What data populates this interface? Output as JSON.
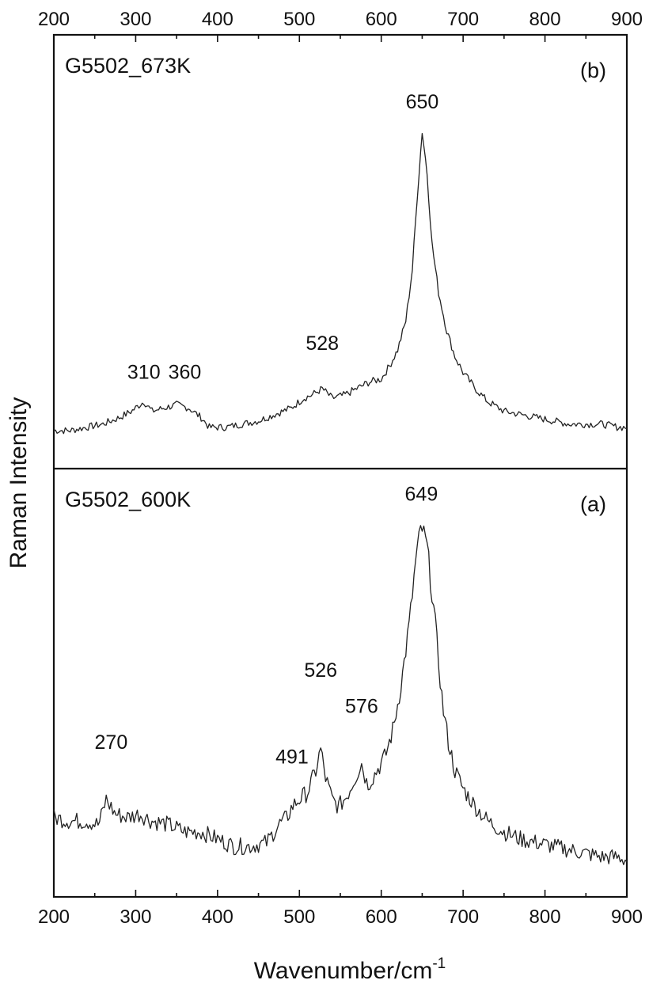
{
  "chart_data": {
    "type": "line",
    "xlabel": "Wavenumber/cm",
    "xlabel_sup": "-1",
    "ylabel": "Raman Intensity",
    "xlim": [
      200,
      900
    ],
    "x_ticks": [
      200,
      300,
      400,
      500,
      600,
      700,
      800,
      900
    ],
    "x_tick_labels": [
      "200",
      "300",
      "400",
      "500",
      "600",
      "700",
      "800",
      "900"
    ],
    "grid": false,
    "panels": [
      {
        "id": "b",
        "name": "G5502_673K",
        "panel_label": "(b)",
        "ylim": [
          0,
          1.0
        ],
        "series": [
          {
            "x": [
              200,
              220,
              240,
              260,
              280,
              295,
              310,
              320,
              335,
              350,
              365,
              380,
              390,
              410,
              430,
              450,
              470,
              490,
              505,
              515,
              528,
              540,
              555,
              570,
              585,
              600,
              610,
              620,
              630,
              638,
              644,
              650,
              656,
              662,
              670,
              680,
              690,
              700,
              715,
              730,
              750,
              770,
              790,
              810,
              830,
              850,
              870,
              890,
              900
            ],
            "y": [
              0.02,
              0.02,
              0.03,
              0.04,
              0.06,
              0.08,
              0.11,
              0.08,
              0.09,
              0.1,
              0.09,
              0.06,
              0.03,
              0.03,
              0.04,
              0.05,
              0.07,
              0.09,
              0.12,
              0.13,
              0.15,
              0.12,
              0.13,
              0.15,
              0.17,
              0.18,
              0.22,
              0.27,
              0.36,
              0.52,
              0.75,
              0.95,
              0.82,
              0.6,
              0.45,
              0.33,
              0.25,
              0.2,
              0.15,
              0.11,
              0.08,
              0.07,
              0.06,
              0.05,
              0.04,
              0.04,
              0.04,
              0.03,
              0.03
            ]
          }
        ],
        "annotations": [
          {
            "text": "310",
            "x": 310,
            "y": 0.18
          },
          {
            "text": "360",
            "x": 360,
            "y": 0.18
          },
          {
            "text": "528",
            "x": 528,
            "y": 0.27
          },
          {
            "text": "650",
            "x": 650,
            "y": 1.02
          }
        ]
      },
      {
        "id": "a",
        "name": "G5502_600K",
        "panel_label": "(a)",
        "ylim": [
          0,
          1.0
        ],
        "series": [
          {
            "x": [
              200,
              220,
              240,
              255,
              264,
              275,
              290,
              305,
              320,
              340,
              360,
              380,
              400,
              420,
              440,
              460,
              475,
              485,
              491,
              500,
              510,
              520,
              526,
              532,
              540,
              548,
              558,
              568,
              576,
              583,
              592,
              605,
              615,
              625,
              635,
              642,
              649,
              656,
              665,
              675,
              682,
              690,
              700,
              715,
              730,
              750,
              770,
              790,
              810,
              830,
              850,
              870,
              890,
              900
            ],
            "y": [
              0.17,
              0.16,
              0.16,
              0.15,
              0.22,
              0.18,
              0.17,
              0.18,
              0.16,
              0.15,
              0.13,
              0.13,
              0.11,
              0.09,
              0.09,
              0.1,
              0.15,
              0.17,
              0.2,
              0.22,
              0.24,
              0.3,
              0.36,
              0.28,
              0.22,
              0.2,
              0.23,
              0.28,
              0.32,
              0.26,
              0.29,
              0.34,
              0.42,
              0.55,
              0.72,
              0.88,
              0.98,
              0.92,
              0.73,
              0.48,
              0.38,
              0.3,
              0.25,
              0.2,
              0.16,
              0.13,
              0.11,
              0.1,
              0.09,
              0.08,
              0.07,
              0.06,
              0.06,
              0.05
            ]
          }
        ],
        "annotations": [
          {
            "text": "270",
            "x": 270,
            "y": 0.36
          },
          {
            "text": "491",
            "x": 491,
            "y": 0.32
          },
          {
            "text": "526",
            "x": 526,
            "y": 0.56
          },
          {
            "text": "576",
            "x": 576,
            "y": 0.46
          },
          {
            "text": "649",
            "x": 649,
            "y": 1.05
          }
        ]
      }
    ]
  }
}
